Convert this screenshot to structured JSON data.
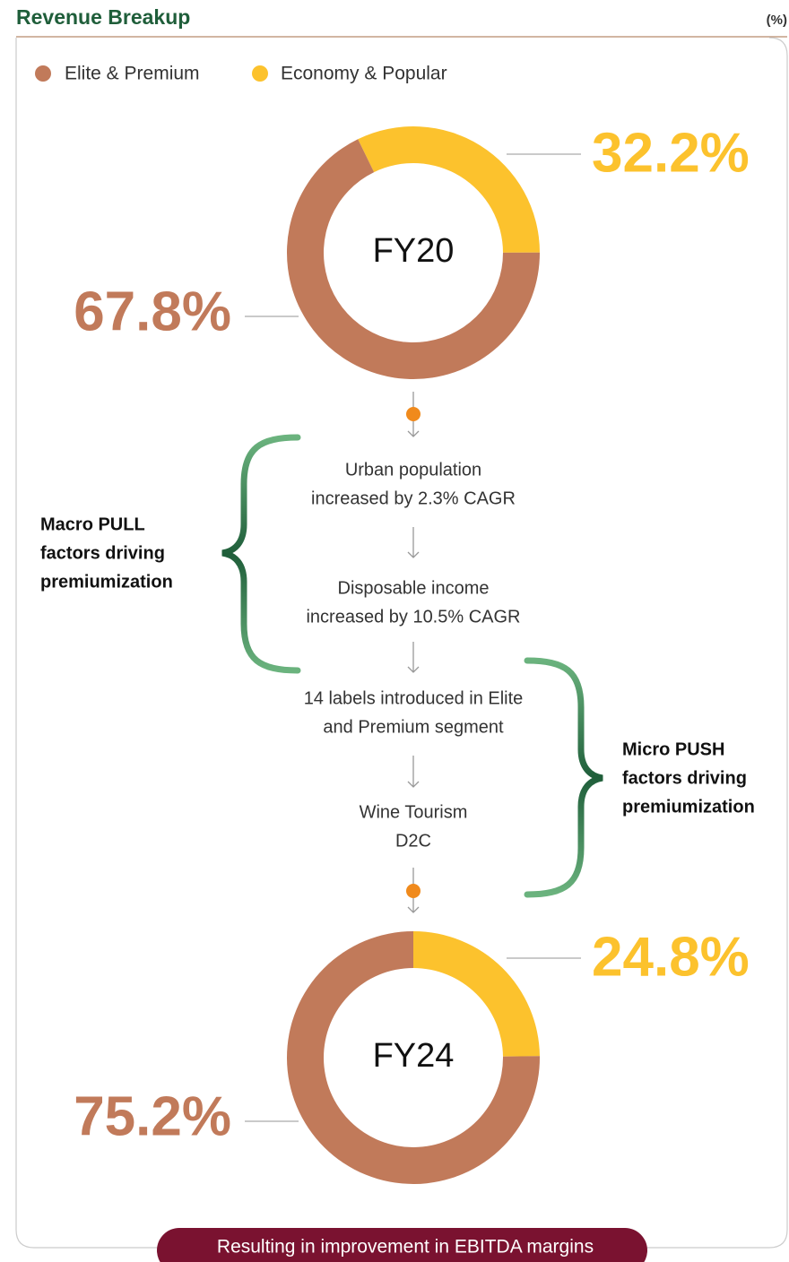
{
  "header": {
    "title": "Revenue Breakup",
    "unit": "(%)"
  },
  "chart_data": [
    {
      "type": "donut",
      "title": "FY20",
      "categories": [
        "Elite & Premium",
        "Economy & Popular"
      ],
      "values": [
        67.8,
        32.2
      ],
      "value_labels": [
        "67.8%",
        "32.2%"
      ],
      "colors": [
        "#c17a5a",
        "#fcc22d"
      ]
    },
    {
      "type": "donut",
      "title": "FY24",
      "categories": [
        "Elite & Premium",
        "Economy & Popular"
      ],
      "values": [
        75.2,
        24.8
      ],
      "value_labels": [
        "75.2%",
        "24.8%"
      ],
      "colors": [
        "#c17a5a",
        "#fcc22d"
      ]
    }
  ],
  "flow": {
    "steps": [
      [
        "Urban population",
        "increased by 2.3% CAGR"
      ],
      [
        "Disposable income",
        "increased by 10.5% CAGR"
      ],
      [
        "14 labels introduced in Elite",
        "and Premium segment"
      ],
      [
        "Wine Tourism",
        "D2C"
      ]
    ],
    "pull_label": [
      "Macro PULL",
      "factors driving",
      "premiumization"
    ],
    "push_label": [
      "Micro PUSH",
      "factors driving",
      "premiumization"
    ],
    "footer": "Resulting in improvement in EBITDA margins"
  }
}
